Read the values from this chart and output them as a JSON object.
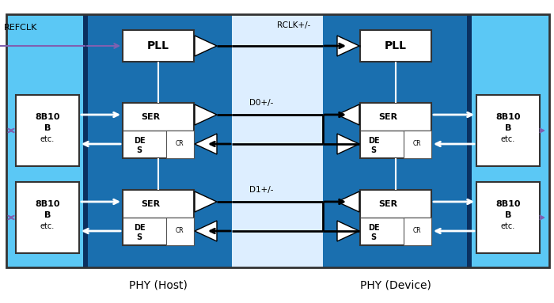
{
  "bg_color": "#ffffff",
  "light_blue": "#5bc8f5",
  "mid_blue": "#1a6faf",
  "dark_sep": "#0a3060",
  "box_fill": "#ffffff",
  "phy_host_label": "PHY (Host)",
  "phy_device_label": "PHY (Device)",
  "refclk_label": "REFCLK",
  "rclk_label": "RCLK+/-",
  "d0_label": "D0+/-",
  "d1_label": "D1+/-",
  "mid_white": "#f0f8ff",
  "purple": "#8060b0"
}
